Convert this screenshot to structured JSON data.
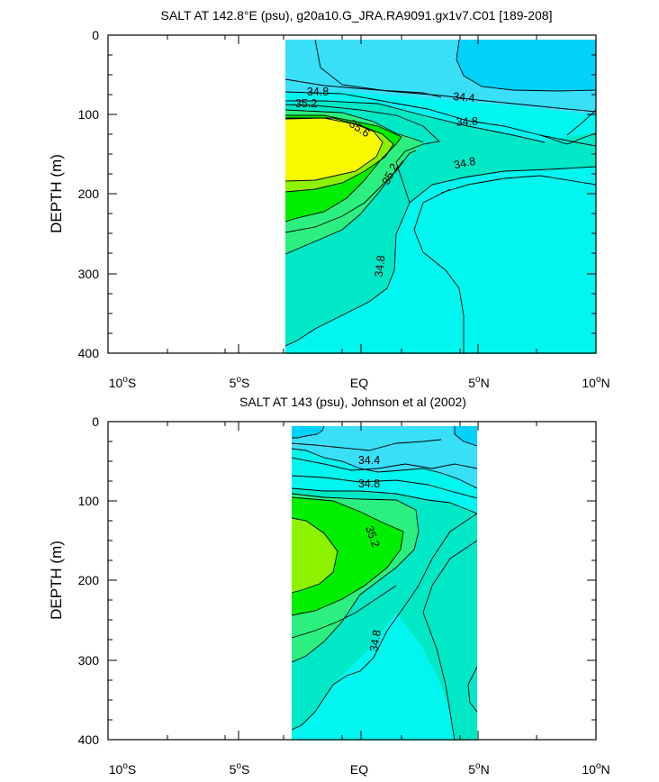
{
  "chart_data": [
    {
      "type": "contour",
      "title": "SALT AT 142.8°E (psu), g20a10.G_JRA.RA9091.gx1v7.C01 [189-208]",
      "ylabel": "DEPTH (m)",
      "xlim": [
        -10,
        10
      ],
      "ylim": [
        400,
        0
      ],
      "x_ticks": [
        -10,
        -5,
        0,
        5,
        10
      ],
      "x_tick_labels": [
        "10°S",
        "5°S",
        "EQ",
        "5°N",
        "10°N"
      ],
      "y_ticks": [
        0,
        100,
        200,
        300,
        400
      ],
      "y_tick_labels": [
        "0",
        "100",
        "200",
        "300",
        "400"
      ],
      "data_extent": {
        "lat": [
          -3.1,
          10
        ],
        "depth": [
          5,
          400
        ]
      },
      "contour_labels": [
        {
          "text": "34.4",
          "lat": 4.0,
          "depth": 92
        },
        {
          "text": "34.8",
          "lat": -1.75,
          "depth": 73
        },
        {
          "text": "35.2",
          "lat": -1.75,
          "depth": 88
        },
        {
          "text": "35.6",
          "lat": -0.15,
          "depth": 117
        },
        {
          "text": "34.8",
          "lat": 4.5,
          "depth": 113
        },
        {
          "text": "35.2",
          "lat": 1.4,
          "depth": 177
        },
        {
          "text": "34.8",
          "lat": 4.5,
          "depth": 163
        },
        {
          "text": "34.8",
          "lat": 0.9,
          "depth": 290
        }
      ]
    },
    {
      "type": "contour",
      "title": "SALT AT 143 (psu), Johnson et al (2002)",
      "ylabel": "DEPTH (m)",
      "xlim": [
        -10,
        10
      ],
      "ylim": [
        400,
        0
      ],
      "x_ticks": [
        -10,
        -5,
        0,
        5,
        10
      ],
      "x_tick_labels": [
        "10°S",
        "5°S",
        "EQ",
        "5°N",
        "10°N"
      ],
      "y_ticks": [
        0,
        100,
        200,
        300,
        400
      ],
      "y_tick_labels": [
        "0",
        "100",
        "200",
        "300",
        "400"
      ],
      "data_extent": {
        "lat": [
          -2.85,
          4.95
        ],
        "depth": [
          5,
          400
        ]
      },
      "contour_labels": [
        {
          "text": "34.4",
          "lat": 0.4,
          "depth": 47
        },
        {
          "text": "34.8",
          "lat": 0.4,
          "depth": 78
        },
        {
          "text": "35.2",
          "lat": 0.4,
          "depth": 150
        },
        {
          "text": "34.8",
          "lat": 0.75,
          "depth": 293
        }
      ]
    }
  ]
}
